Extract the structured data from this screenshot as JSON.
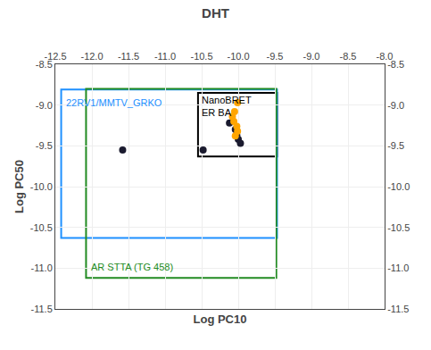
{
  "chart_data": {
    "type": "scatter",
    "title": "DHT",
    "x_label": "Log PC10",
    "y_label": "Log PC50",
    "xlim": [
      -12.5,
      -8.0
    ],
    "xticks": [
      -12.5,
      {
        "value": -12.0,
        "label": "-12.0"
      },
      -11.5,
      {
        "value": -11.0,
        "label": "-11.0"
      },
      -10.5,
      {
        "value": -10.0,
        "label": "-10.0"
      },
      -9.5,
      {
        "value": -9.0,
        "label": "-9.0"
      },
      -8.5,
      {
        "value": -8.0,
        "label": "-8.0"
      }
    ],
    "ylim": [
      -11.5,
      -8.5
    ],
    "yticks": [
      -11.5,
      {
        "value": -11.0,
        "label": "-11.0"
      },
      -10.5,
      {
        "value": -10.0,
        "label": "-10.0"
      },
      -9.5,
      {
        "value": -9.0,
        "label": "-9.0"
      },
      -8.5
    ],
    "y2lim": [
      -11.5,
      -8.5
    ],
    "y2ticks": [
      -11.5,
      {
        "value": -11.0,
        "label": "-11.0"
      },
      -10.5,
      {
        "value": -10.0,
        "label": "-10.0"
      },
      -9.5,
      {
        "value": -9.0,
        "label": "-9.0"
      },
      -8.5
    ],
    "grid": true,
    "series": [
      {
        "color": "#1a1a2e",
        "x": [
          -10.48,
          -10.12,
          -10.04,
          -10.02,
          -10.0,
          -9.97,
          -11.58
        ],
        "values": [
          -9.55,
          -9.22,
          -9.3,
          -9.37,
          -9.42,
          -9.47,
          -9.55
        ]
      },
      {
        "color": "#FFA500",
        "x": [
          -10.01,
          -10.05,
          -10.08,
          -10.06,
          -10.02,
          -10.01,
          -10.04
        ],
        "values": [
          -8.97,
          -9.08,
          -9.14,
          -9.2,
          -9.26,
          -9.32,
          -9.38
        ]
      }
    ],
    "boxes": [
      {
        "label": "NanoBRET\nER BA",
        "color": "black",
        "x0": -10.55,
        "y0": -9.63,
        "width": 1.08,
        "height": 0.78,
        "label_x": -10.52,
        "label_y": -8.855
      },
      {
        "label": "22RV1/MMTV_GRKO",
        "color": "#1E90FF",
        "x0": -12.42,
        "y0": -10.63,
        "width": 2.95,
        "height": 1.82,
        "label_x": -12.38,
        "label_y": -8.88
      },
      {
        "label": "AR STTA (TG 458)",
        "color": "#228B22",
        "x0": -12.08,
        "y0": -11.12,
        "width": 2.6,
        "height": 2.32,
        "label_x": -12.04,
        "label_y": -10.9
      }
    ]
  }
}
